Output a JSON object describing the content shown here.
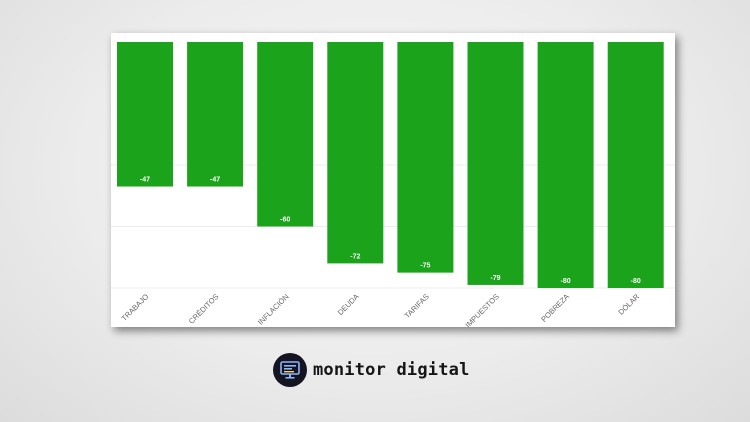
{
  "chart_data": {
    "type": "bar",
    "categories": [
      "TRABAJO",
      "CRÉDITOS",
      "INFLACIÓN",
      "DEUDA",
      "TARIFAS",
      "IMPUESTOS",
      "POBREZA",
      "DÓLAR"
    ],
    "values": [
      -47,
      -47,
      -60,
      -72,
      -75,
      -79,
      -80,
      -80
    ],
    "value_labels": [
      "-47",
      "-47",
      "-60",
      "-72",
      "-75",
      "-79",
      "-80",
      "-80"
    ],
    "ylim": [
      -80,
      0
    ],
    "bar_color": "#1ba41b",
    "grid": true,
    "title": "",
    "xlabel": "",
    "ylabel": ""
  },
  "brand": {
    "name": "monitor digital",
    "icon": "computer-monitor-icon"
  }
}
